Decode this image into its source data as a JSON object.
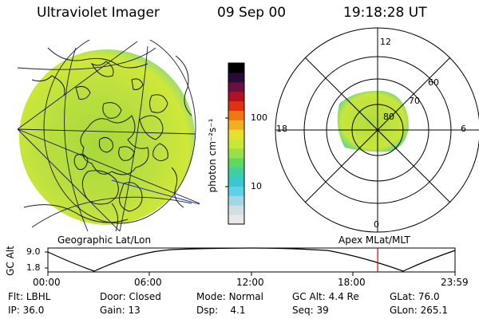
{
  "header": {
    "instrument": "Ultraviolet Imager",
    "date": "09 Sep 00",
    "time": "19:18:28 UT"
  },
  "colorbar": {
    "unit_label": "photon cm⁻²s⁻¹",
    "ticks": [
      "100",
      "10"
    ],
    "colors": [
      "#000000",
      "#2a0a3a",
      "#6a1040",
      "#b01020",
      "#e03010",
      "#f07810",
      "#f0b020",
      "#e8e030",
      "#c8e838",
      "#98e048",
      "#60d860",
      "#40d0a0",
      "#38c8d0",
      "#60d0e8",
      "#a0d8e8",
      "#d0e0e0",
      "#e8e8e8"
    ]
  },
  "left_panel": {
    "label": "Geographic Lat/Lon",
    "disk_color": "#b8e040"
  },
  "right_panel": {
    "label": "Apex MLat/MLT",
    "mlt_labels": {
      "top": "12",
      "left": "18",
      "right": "6",
      "bottom": "0"
    },
    "lat_labels": [
      "60",
      "70",
      "80"
    ]
  },
  "altitude_plot": {
    "y_axis_label": "GC Alt",
    "y_ticks": [
      "9.0",
      "1.8"
    ],
    "x_ticks": [
      "00:00",
      "06:00",
      "12:00",
      "18:00",
      "23:59"
    ],
    "current_time_fraction": 0.81,
    "marker_color": "#cc0000"
  },
  "info": {
    "row1": [
      {
        "key": "Flt:",
        "value": "LBHL"
      },
      {
        "key": "Door:",
        "value": "Closed"
      },
      {
        "key": "Mode:",
        "value": "Normal"
      },
      {
        "key": "GC Alt:",
        "value": "4.4 Re"
      },
      {
        "key": "GLat:",
        "value": "76.0"
      }
    ],
    "row2": [
      {
        "key": "IP:",
        "value": "36.0"
      },
      {
        "key": "Gain:",
        "value": "13"
      },
      {
        "key": "Dsp:",
        "value": "4.1"
      },
      {
        "key": "Seq:",
        "value": "39"
      },
      {
        "key": "GLon:",
        "value": "265.1"
      }
    ]
  }
}
